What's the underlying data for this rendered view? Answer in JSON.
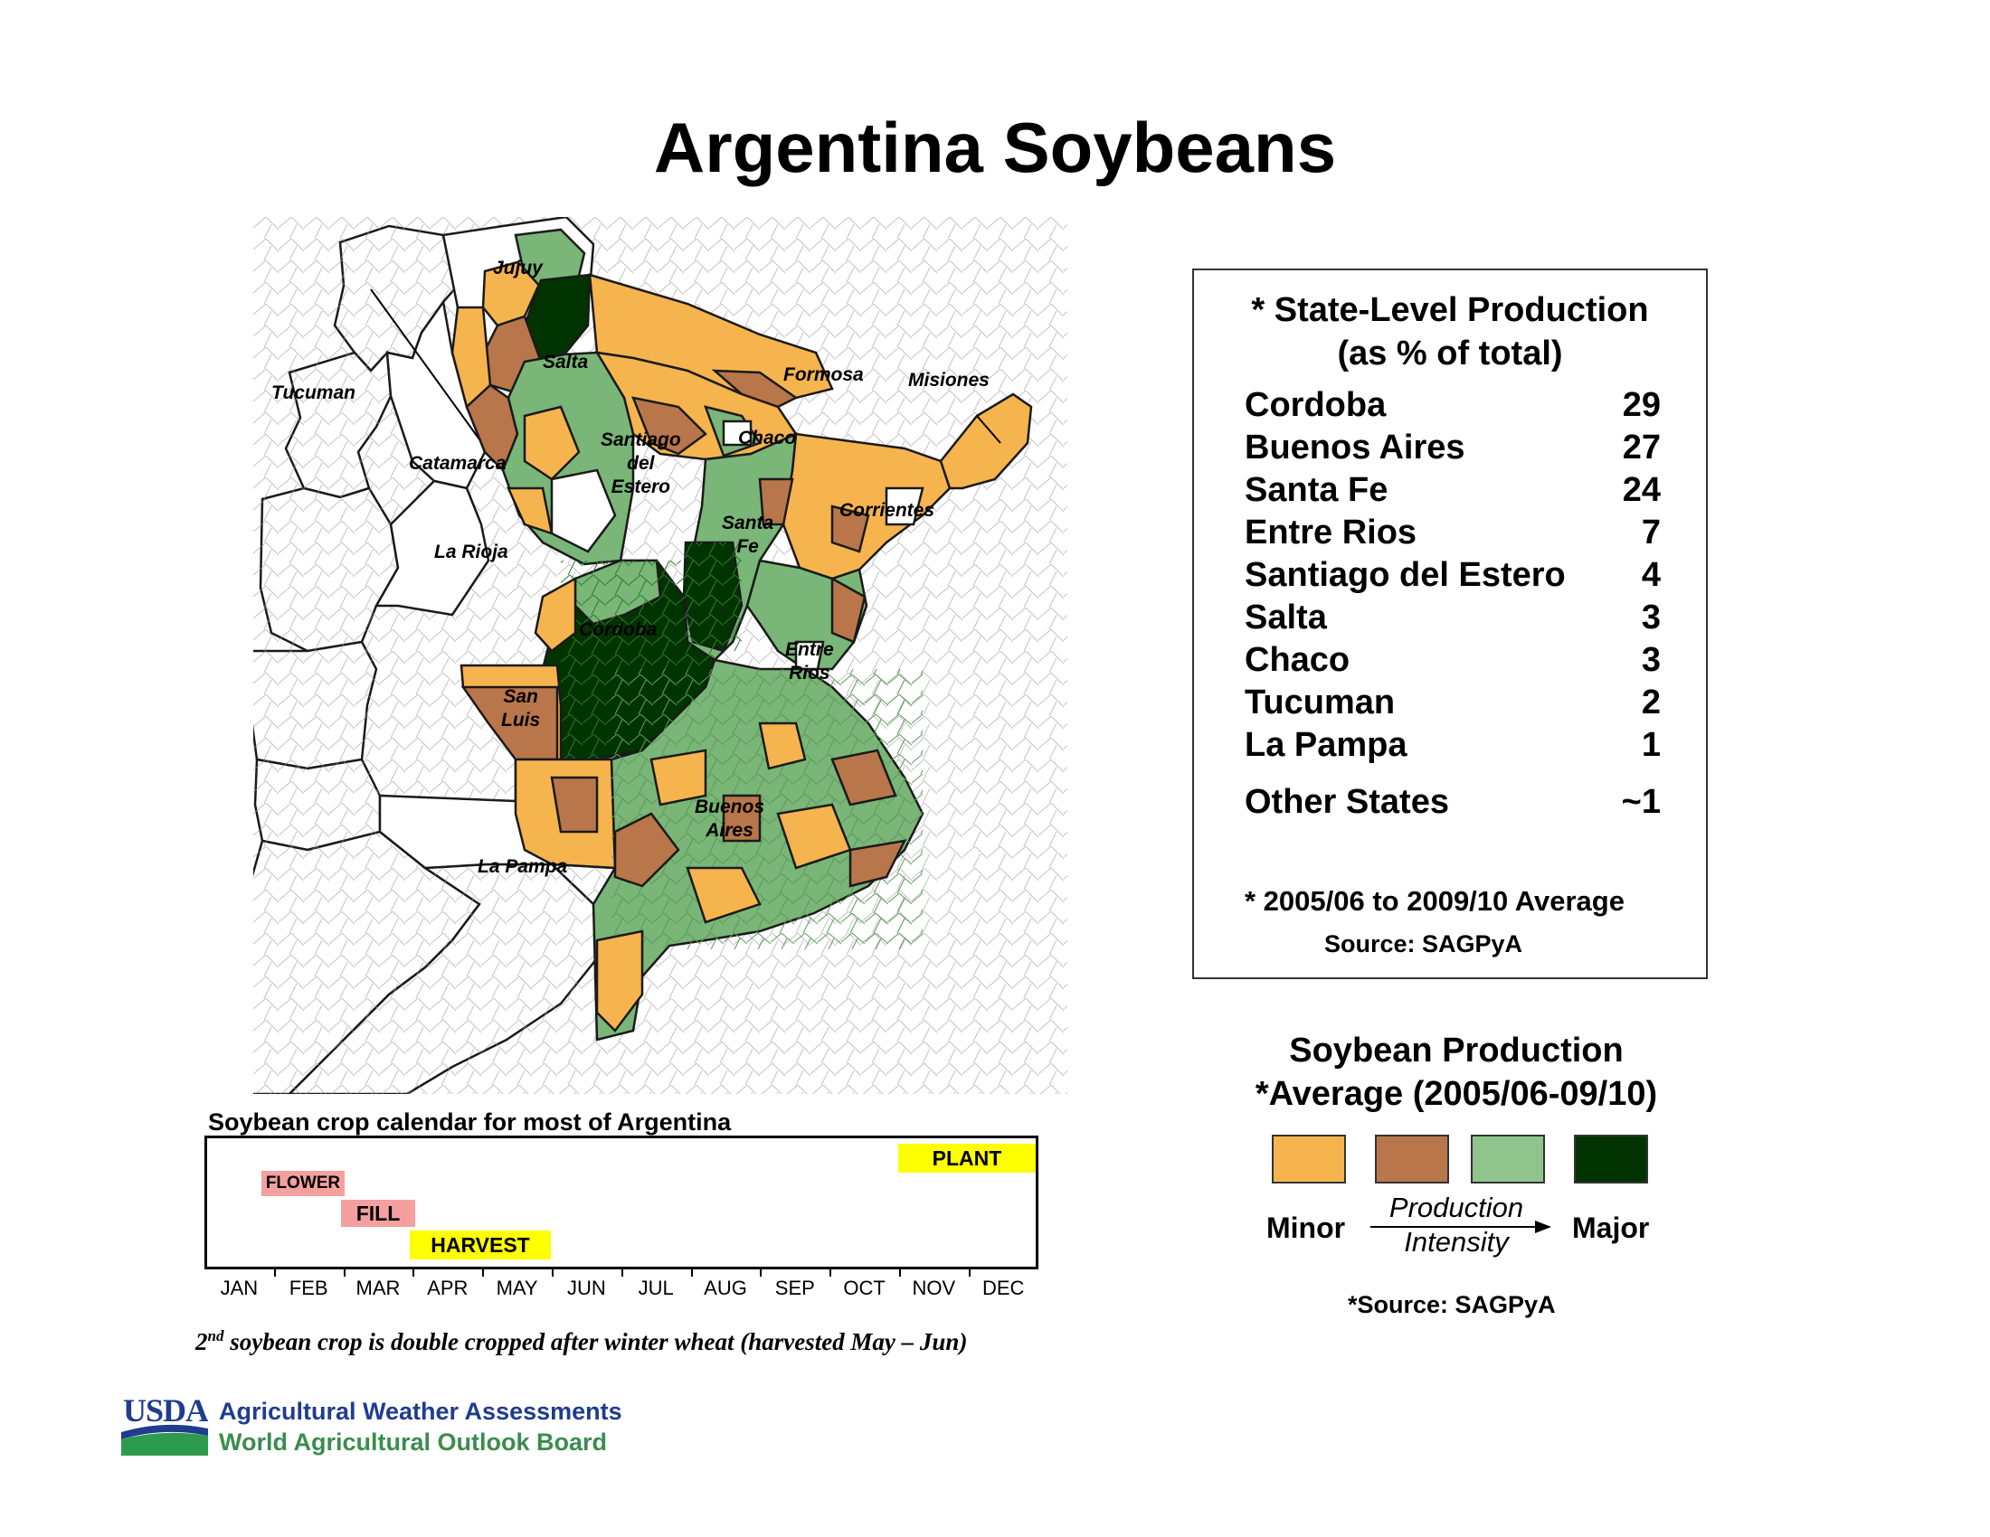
{
  "title": "Argentina Soybeans",
  "map": {
    "province_labels": {
      "jujuy": "Jujuy",
      "salta": "Salta",
      "tucuman": "Tucuman",
      "formosa": "Formosa",
      "misiones": "Misiones",
      "catamarca": "Catamarca",
      "santiago_del_estero": "Santiago\ndel\nEstero",
      "chaco": "Chaco",
      "corrientes": "Corrientes",
      "la_rioja": "La Rioja",
      "santa_fe": "Santa\nFe",
      "cordoba": "Cordoba",
      "entre_rios": "Entre\nRios",
      "san_luis": "San\nLuis",
      "buenos_aires": "Buenos\nAires",
      "la_pampa": "La Pampa"
    },
    "colors": {
      "minor": "#f6b44e",
      "moderate": "#b8764a",
      "high": "#79b677",
      "major": "#003300",
      "outline": "#1a1a1a"
    }
  },
  "production_table": {
    "title_line1": "* State-Level Production",
    "title_line2": "(as % of total)",
    "rows": [
      {
        "state": "Cordoba",
        "value": "29"
      },
      {
        "state": "Buenos Aires",
        "value": "27"
      },
      {
        "state": "Santa Fe",
        "value": "24"
      },
      {
        "state": "Entre Rios",
        "value": "7"
      },
      {
        "state": "Santiago del Estero",
        "value": "4"
      },
      {
        "state": "Salta",
        "value": "3"
      },
      {
        "state": "Chaco",
        "value": "3"
      },
      {
        "state": "Tucuman",
        "value": "2"
      },
      {
        "state": "La Pampa",
        "value": "1"
      },
      {
        "state": "Other States",
        "value": "~1"
      }
    ],
    "note": "* 2005/06 to 2009/10 Average",
    "source": "Source: SAGPyA"
  },
  "legend": {
    "title_line1": "Soybean Production",
    "title_line2": "*Average (2005/06-09/10)",
    "minor_label": "Minor",
    "major_label": "Major",
    "axis_label_line1": "Production",
    "axis_label_line2": "Intensity",
    "source": "*Source: SAGPyA",
    "swatch_colors": [
      "#f6b44e",
      "#b8764a",
      "#8fc48c",
      "#003300"
    ]
  },
  "calendar": {
    "title": "Soybean crop calendar for most of Argentina",
    "months": [
      "JAN",
      "FEB",
      "MAR",
      "APR",
      "MAY",
      "JUN",
      "JUL",
      "AUG",
      "SEP",
      "OCT",
      "NOV",
      "DEC"
    ],
    "stages": {
      "flower": "FLOWER",
      "fill": "FILL",
      "harvest": "HARVEST",
      "plant": "PLANT"
    },
    "stage_colors": {
      "flower": "#f4a0a0",
      "fill": "#f4a0a0",
      "harvest": "#ffff00",
      "plant": "#ffff00"
    },
    "note_sup": "nd",
    "note_prefix": "2",
    "note_text": " soybean crop is  double cropped  after winter wheat (harvested May – Jun)"
  },
  "footer": {
    "logo_text": "USDA",
    "line1": "Agricultural Weather Assessments",
    "line2": "World Agricultural Outlook Board"
  }
}
